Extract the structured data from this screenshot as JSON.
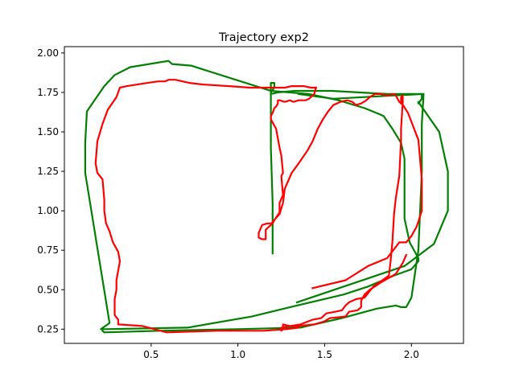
{
  "chart_data": {
    "type": "line",
    "title": "Trajectory exp2",
    "xlabel": "",
    "ylabel": "",
    "xlim": [
      0.0,
      2.3
    ],
    "ylim": [
      0.16,
      2.04
    ],
    "grid": false,
    "x_ticks": [
      {
        "value": 0.5,
        "label": "0.5"
      },
      {
        "value": 1.0,
        "label": "1.0"
      },
      {
        "value": 1.5,
        "label": "1.5"
      },
      {
        "value": 2.0,
        "label": "2.0"
      }
    ],
    "y_ticks": [
      {
        "value": 0.25,
        "label": "0.25"
      },
      {
        "value": 0.5,
        "label": "0.50"
      },
      {
        "value": 0.75,
        "label": "0.75"
      },
      {
        "value": 1.0,
        "label": "1.00"
      },
      {
        "value": 1.25,
        "label": "1.25"
      },
      {
        "value": 1.5,
        "label": "1.50"
      },
      {
        "value": 1.75,
        "label": "1.75"
      },
      {
        "value": 2.0,
        "label": "2.00"
      }
    ],
    "series": [
      {
        "color": "#008000",
        "x": [
          1.2,
          1.2,
          1.19,
          1.19,
          1.21,
          1.21,
          1.19,
          1.19,
          1.23,
          1.33,
          1.54,
          1.86,
          2.06,
          2.06,
          2.04,
          2.04,
          2.16,
          2.21,
          2.21,
          2.13,
          1.96,
          1.34
        ],
        "y": [
          0.73,
          1.05,
          1.4,
          1.81,
          1.81,
          1.78,
          1.75,
          1.74,
          1.75,
          1.76,
          1.76,
          1.74,
          1.74,
          1.71,
          1.68,
          1.69,
          1.5,
          1.25,
          1.0,
          0.79,
          0.65,
          0.42
        ]
      },
      {
        "color": "#008000",
        "x": [
          1.19,
          1.41,
          1.58,
          1.73,
          1.82,
          1.84,
          1.89,
          1.94,
          1.96,
          1.96,
          1.99,
          2.04,
          2.04,
          2.0,
          1.9,
          1.75,
          1.61,
          1.34,
          1.08,
          0.71,
          0.24,
          0.21,
          0.25,
          0.26,
          0.12,
          0.12,
          0.13,
          0.23,
          0.29,
          0.38,
          0.6,
          0.62,
          0.73,
          1.19
        ],
        "y": [
          1.76,
          1.74,
          1.7,
          1.65,
          1.61,
          1.6,
          1.52,
          1.43,
          1.33,
          0.95,
          0.8,
          0.7,
          0.68,
          0.63,
          0.59,
          0.52,
          0.47,
          0.4,
          0.33,
          0.26,
          0.25,
          0.25,
          0.28,
          0.29,
          1.24,
          1.43,
          1.63,
          1.79,
          1.86,
          1.91,
          1.95,
          1.93,
          1.92,
          1.76
        ]
      },
      {
        "color": "#008000",
        "x": [
          0.22,
          0.23,
          0.55,
          1.0,
          1.36,
          1.6,
          1.8,
          1.91,
          1.94,
          1.97,
          2.0,
          2.04,
          2.05,
          2.06,
          2.06,
          2.07,
          1.89,
          1.55,
          1.35
        ],
        "y": [
          0.24,
          0.23,
          0.24,
          0.25,
          0.26,
          0.32,
          0.38,
          0.4,
          0.39,
          0.39,
          0.45,
          0.75,
          1.0,
          1.25,
          1.55,
          1.74,
          1.73,
          1.71,
          1.74
        ]
      },
      {
        "color": "#ff0000",
        "x": [
          1.43,
          1.62,
          1.75,
          1.86,
          1.93,
          1.97,
          2.0,
          2.03,
          2.06,
          2.06,
          2.04,
          1.98,
          1.94,
          1.94,
          1.95,
          1.95,
          1.94,
          1.94,
          1.93,
          1.91,
          1.9,
          1.89,
          1.88,
          1.87,
          1.82,
          1.78,
          1.73,
          1.68,
          1.64,
          1.62,
          1.6,
          1.56,
          1.51,
          1.48,
          1.43,
          1.36,
          1.3,
          1.26,
          1.26,
          1.25,
          1.25,
          1.3,
          1.35,
          1.44,
          1.5,
          1.53,
          1.62,
          1.64,
          1.69,
          1.71,
          1.71,
          1.73,
          1.76,
          1.83,
          1.91,
          1.95,
          1.97
        ],
        "y": [
          0.51,
          0.56,
          0.65,
          0.7,
          0.8,
          0.8,
          0.84,
          0.9,
          1.0,
          1.2,
          1.45,
          1.62,
          1.69,
          1.72,
          1.73,
          1.69,
          1.52,
          1.45,
          1.22,
          1.08,
          0.98,
          0.8,
          0.68,
          0.59,
          0.55,
          0.52,
          0.45,
          0.44,
          0.42,
          0.4,
          0.37,
          0.36,
          0.35,
          0.32,
          0.31,
          0.28,
          0.27,
          0.28,
          0.25,
          0.24,
          0.26,
          0.27,
          0.27,
          0.28,
          0.3,
          0.32,
          0.33,
          0.36,
          0.37,
          0.39,
          0.43,
          0.47,
          0.5,
          0.55,
          0.6,
          0.67,
          0.72
        ]
      },
      {
        "color": "#ff0000",
        "x": [
          1.35,
          1.28,
          1.15,
          0.88,
          0.59,
          0.45,
          0.31,
          0.31,
          0.29,
          0.29,
          0.3,
          0.3,
          0.32,
          0.31,
          0.28,
          0.26,
          0.24,
          0.23,
          0.23,
          0.22,
          0.19,
          0.18,
          0.19,
          0.22,
          0.25,
          0.3,
          0.32,
          0.36,
          0.42,
          0.48,
          0.54,
          0.57,
          0.58,
          0.6,
          0.64,
          0.72,
          0.8,
          0.95,
          1.07,
          1.15,
          1.21,
          1.24,
          1.27,
          1.31,
          1.38,
          1.42,
          1.45
        ],
        "y": [
          0.26,
          0.25,
          0.24,
          0.24,
          0.23,
          0.27,
          0.28,
          0.31,
          0.34,
          0.44,
          0.5,
          0.56,
          0.68,
          0.74,
          0.8,
          0.87,
          0.92,
          1.0,
          1.07,
          1.2,
          1.24,
          1.3,
          1.44,
          1.55,
          1.64,
          1.72,
          1.78,
          1.79,
          1.8,
          1.81,
          1.82,
          1.82,
          1.82,
          1.83,
          1.83,
          1.81,
          1.8,
          1.79,
          1.78,
          1.78,
          1.78,
          1.78,
          1.78,
          1.79,
          1.79,
          1.78,
          1.78
        ]
      },
      {
        "color": "#ff0000",
        "x": [
          1.45,
          1.44,
          1.41,
          1.39,
          1.37,
          1.35,
          1.32,
          1.3,
          1.27,
          1.24,
          1.23,
          1.23,
          1.22,
          1.21,
          1.2,
          1.19,
          1.19,
          1.22,
          1.24,
          1.25,
          1.26,
          1.25,
          1.26,
          1.24,
          1.24,
          1.21,
          1.2,
          1.17,
          1.14,
          1.12,
          1.12,
          1.14,
          1.16,
          1.16,
          1.16,
          1.19,
          1.2,
          1.24
        ],
        "y": [
          1.78,
          1.74,
          1.71,
          1.7,
          1.7,
          1.7,
          1.69,
          1.7,
          1.69,
          1.7,
          1.7,
          1.68,
          1.66,
          1.65,
          1.62,
          1.6,
          1.58,
          1.52,
          1.4,
          1.35,
          1.24,
          1.22,
          1.1,
          1.05,
          0.99,
          0.94,
          0.92,
          0.92,
          0.91,
          0.86,
          0.83,
          0.82,
          0.82,
          0.85,
          0.88,
          0.91,
          0.93,
          0.98
        ]
      },
      {
        "color": "#ff0000",
        "x": [
          1.24,
          1.26,
          1.27,
          1.31,
          1.35,
          1.4,
          1.43,
          1.46,
          1.49,
          1.52,
          1.55,
          1.59,
          1.63,
          1.66,
          1.68,
          1.71,
          1.74,
          1.76,
          1.79,
          1.82,
          1.86,
          1.9,
          1.91,
          1.92,
          1.93,
          1.94
        ],
        "y": [
          0.98,
          1.05,
          1.14,
          1.24,
          1.3,
          1.38,
          1.44,
          1.52,
          1.58,
          1.63,
          1.67,
          1.69,
          1.7,
          1.69,
          1.67,
          1.68,
          1.7,
          1.72,
          1.74,
          1.74,
          1.73,
          1.74,
          1.73,
          1.71,
          1.69,
          1.68
        ]
      }
    ]
  }
}
